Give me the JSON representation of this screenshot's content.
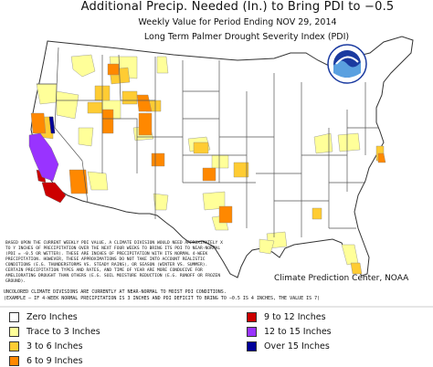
{
  "title": "Additional Precip. Needed (In.) to Bring PDI to −0.5",
  "subtitle_1": "Weekly Value for Period Ending NOV 29, 2014",
  "subtitle_2": "Long Term Palmer Drought Severity Index (PDI)",
  "logo_text": "NOAA",
  "note": "Based upon the current weekly PDI value, a climate division would need approximately X to Y inches of precipitation over the next four weeks to bring its PDI to near-normal (PDI = -0.5 or wetter). These are inches of precipitation with its normal 4-week precipitation. However, these approximations do not take into account realistic conditions (e.g. thunderstorms vs. steady rains), or season (winter vs. summer). Certain precipitation types and rates, and time of year are more conducive for ameliorating drought than others (e.g. soil moisture reduction (e.g. runoff or frozen ground).",
  "credit": "Climate Prediction Center, NOAA",
  "footnote_1": "Uncolored climate divisions are currently at near-normal to moist PDI conditions.",
  "footnote_2": "(Example – if 4-week normal precipitation is 3 inches and PDI deficit to bring to −0.5 is 4 inches, the value is 7)",
  "colors": {
    "zero": "#ffffff",
    "trace_3": "#ffff99",
    "in3_6": "#ffcc33",
    "in6_9": "#ff8800",
    "in9_12": "#cc0000",
    "in12_15": "#9933ff",
    "over15": "#000099",
    "state_line": "#444444",
    "division_line": "#999999"
  },
  "legend": {
    "items": [
      {
        "label": "Zero Inches",
        "color": "#ffffff"
      },
      {
        "label": "Trace to 3 Inches",
        "color": "#ffff99"
      },
      {
        "label": "3 to 6 Inches",
        "color": "#ffcc33"
      },
      {
        "label": "6 to 9 Inches",
        "color": "#ff8800"
      },
      {
        "label": "9 to 12 Inches",
        "color": "#cc0000"
      },
      {
        "label": "12 to 15 Inches",
        "color": "#9933ff"
      },
      {
        "label": "Over 15 Inches",
        "color": "#000099"
      }
    ]
  }
}
